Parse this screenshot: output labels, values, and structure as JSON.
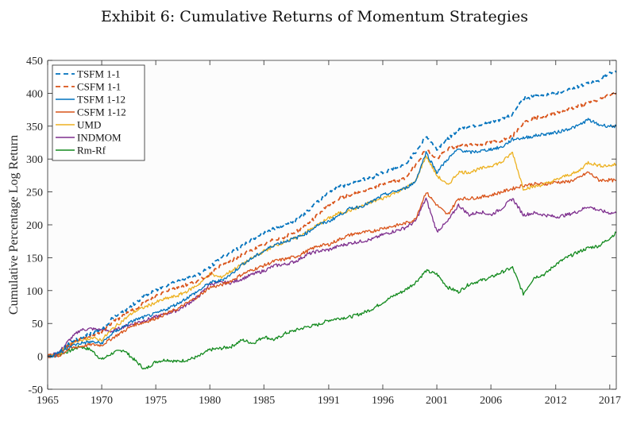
{
  "chart_data": {
    "type": "line",
    "title": "Exhibit 6: Cumulative Returns of Momentum Strategies",
    "xlabel": "",
    "ylabel": "Cumulative Percentage Log Return",
    "xlim": [
      1965,
      2017.6
    ],
    "ylim": [
      -50,
      450
    ],
    "x_ticks": [
      1965,
      1970,
      1975,
      1980,
      1985,
      1991,
      1996,
      2001,
      2006,
      2012,
      2017
    ],
    "x_tick_labels": [
      "1965",
      "1970",
      "1975",
      "1980",
      "1985",
      "1991",
      "1996",
      "2001",
      "2006",
      "2012",
      "2017"
    ],
    "y_ticks": [
      -50,
      0,
      50,
      100,
      150,
      200,
      250,
      300,
      350,
      400,
      450
    ],
    "y_tick_labels": [
      "-50",
      "0",
      "50",
      "100",
      "150",
      "200",
      "250",
      "300",
      "350",
      "400",
      "450"
    ],
    "grid": false,
    "legend_position": "top-left",
    "x": [
      1965,
      1966,
      1967,
      1968,
      1969,
      1970,
      1971,
      1972,
      1973,
      1974,
      1975,
      1976,
      1977,
      1978,
      1979,
      1980,
      1981,
      1982,
      1983,
      1984,
      1985,
      1986,
      1987,
      1988,
      1989,
      1990,
      1991,
      1992,
      1993,
      1994,
      1995,
      1996,
      1997,
      1998,
      1999,
      2000,
      2001,
      2002,
      2003,
      2004,
      2005,
      2006,
      2007,
      2008,
      2009,
      2010,
      2011,
      2012,
      2013,
      2014,
      2015,
      2016,
      2017,
      2017.6
    ],
    "series": [
      {
        "name": "TSFM 1-1",
        "color": "#0072BD",
        "style": "dashed",
        "values": [
          0,
          5,
          20,
          28,
          35,
          40,
          58,
          68,
          80,
          92,
          100,
          108,
          115,
          120,
          125,
          135,
          150,
          158,
          168,
          178,
          188,
          195,
          200,
          208,
          220,
          235,
          250,
          258,
          262,
          268,
          272,
          280,
          285,
          290,
          310,
          335,
          315,
          330,
          345,
          350,
          352,
          355,
          360,
          368,
          392,
          395,
          398,
          400,
          405,
          410,
          415,
          420,
          430,
          432
        ]
      },
      {
        "name": "CSFM 1-1",
        "color": "#D95319",
        "style": "dashed",
        "values": [
          0,
          3,
          18,
          25,
          32,
          37,
          52,
          62,
          72,
          82,
          92,
          100,
          105,
          110,
          115,
          125,
          138,
          145,
          155,
          162,
          170,
          178,
          182,
          190,
          200,
          215,
          230,
          240,
          245,
          250,
          255,
          262,
          266,
          270,
          290,
          315,
          300,
          315,
          320,
          322,
          322,
          325,
          328,
          335,
          355,
          362,
          365,
          370,
          375,
          380,
          385,
          390,
          398,
          400
        ]
      },
      {
        "name": "TSFM 1-12",
        "color": "#0072BD",
        "style": "solid",
        "values": [
          0,
          2,
          15,
          20,
          22,
          20,
          35,
          45,
          55,
          60,
          65,
          72,
          80,
          90,
          100,
          112,
          115,
          125,
          140,
          150,
          160,
          170,
          175,
          180,
          188,
          200,
          205,
          215,
          225,
          228,
          235,
          245,
          250,
          255,
          265,
          310,
          280,
          300,
          315,
          310,
          312,
          315,
          318,
          330,
          332,
          335,
          338,
          340,
          345,
          350,
          360,
          352,
          350,
          350
        ]
      },
      {
        "name": "CSFM 1-12",
        "color": "#D95319",
        "style": "solid",
        "values": [
          0,
          0,
          12,
          15,
          18,
          17,
          28,
          38,
          48,
          52,
          58,
          65,
          72,
          82,
          92,
          105,
          108,
          115,
          125,
          132,
          138,
          145,
          148,
          152,
          160,
          168,
          170,
          178,
          185,
          188,
          190,
          195,
          198,
          202,
          208,
          250,
          230,
          215,
          240,
          240,
          242,
          245,
          250,
          255,
          260,
          262,
          262,
          265,
          265,
          270,
          280,
          268,
          268,
          267
        ]
      },
      {
        "name": "UMD",
        "color": "#EDB120",
        "style": "solid",
        "values": [
          0,
          3,
          18,
          25,
          28,
          25,
          42,
          55,
          68,
          75,
          82,
          88,
          92,
          100,
          110,
          125,
          120,
          130,
          140,
          150,
          160,
          168,
          175,
          180,
          190,
          200,
          210,
          218,
          222,
          228,
          235,
          240,
          248,
          255,
          265,
          305,
          275,
          260,
          280,
          280,
          285,
          290,
          295,
          310,
          255,
          258,
          262,
          268,
          275,
          280,
          295,
          290,
          290,
          292
        ]
      },
      {
        "name": "INDMOM",
        "color": "#7E2F8E",
        "style": "solid",
        "values": [
          0,
          5,
          25,
          40,
          42,
          40,
          38,
          45,
          50,
          55,
          60,
          65,
          70,
          80,
          92,
          110,
          112,
          112,
          118,
          125,
          130,
          138,
          140,
          145,
          155,
          160,
          162,
          168,
          172,
          175,
          178,
          185,
          190,
          195,
          205,
          240,
          190,
          205,
          230,
          215,
          220,
          215,
          225,
          240,
          215,
          218,
          215,
          212,
          215,
          220,
          228,
          222,
          218,
          218
        ]
      },
      {
        "name": "Rm-Rf",
        "color": "#138A1E",
        "style": "solid",
        "values": [
          0,
          3,
          8,
          15,
          10,
          -5,
          5,
          10,
          -5,
          -20,
          -8,
          -5,
          -8,
          -5,
          0,
          10,
          12,
          15,
          25,
          20,
          30,
          25,
          35,
          40,
          45,
          48,
          55,
          58,
          60,
          65,
          72,
          82,
          92,
          100,
          112,
          130,
          125,
          105,
          98,
          110,
          115,
          120,
          128,
          135,
          95,
          120,
          125,
          140,
          150,
          158,
          165,
          168,
          180,
          188
        ]
      }
    ]
  }
}
